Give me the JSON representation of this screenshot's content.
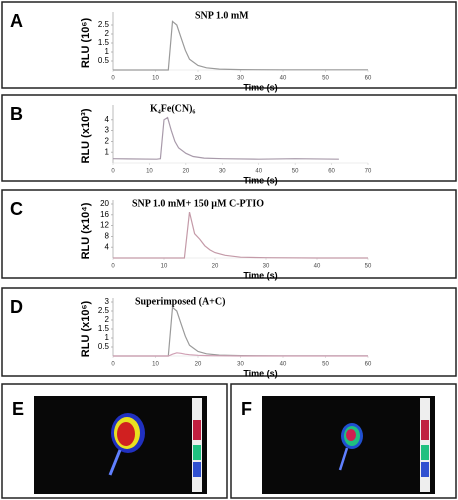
{
  "chart_data": [
    {
      "type": "line",
      "panel": "A",
      "title": "SNP 1.0 mM",
      "y_label": "RLU (10⁶)",
      "x_label": "Time (s)",
      "x": [
        0,
        12,
        13,
        14,
        15,
        16,
        17,
        18,
        20,
        22,
        25,
        30,
        40,
        50,
        60
      ],
      "series": [
        {
          "name": "SNP 1.0 mM",
          "color": "#9a9a9a",
          "values": [
            0,
            0,
            0,
            2.7,
            2.5,
            1.8,
            1.1,
            0.6,
            0.25,
            0.12,
            0.05,
            0.02,
            0.01,
            0.01,
            0.01
          ]
        }
      ],
      "xlim": [
        0,
        60
      ],
      "xticks": [
        0,
        10,
        20,
        30,
        40,
        50,
        60
      ],
      "ylim": [
        0,
        3
      ],
      "yticks": [
        0.5,
        1.0,
        1.5,
        2.0,
        2.5
      ]
    },
    {
      "type": "line",
      "panel": "B",
      "title": "K₄Fe(CN)₆",
      "y_label": "RLU (x10³)",
      "x_label": "Time (s)",
      "x": [
        0,
        12,
        13,
        14,
        15,
        16,
        17,
        18,
        20,
        22,
        25,
        30,
        40,
        50,
        62
      ],
      "series": [
        {
          "name": "K₄Fe(CN)₆",
          "color": "#a89aaa",
          "values": [
            0.4,
            0.35,
            0.4,
            4.0,
            4.2,
            3.0,
            2.0,
            1.4,
            0.9,
            0.6,
            0.45,
            0.4,
            0.35,
            0.4,
            0.35
          ]
        }
      ],
      "xlim": [
        0,
        70
      ],
      "xticks": [
        0,
        10,
        20,
        30,
        40,
        50,
        60,
        70
      ],
      "ylim": [
        0,
        5
      ],
      "yticks": [
        1,
        2,
        3,
        4
      ]
    },
    {
      "type": "line",
      "panel": "C",
      "title": "SNP 1.0 mM+ 150 µM C-PTIO",
      "y_label": "RLU (x10⁴)",
      "x_label": "Time (s)",
      "x": [
        0,
        13,
        14,
        15,
        16,
        17,
        18,
        19,
        20,
        22,
        25,
        30,
        40,
        50
      ],
      "series": [
        {
          "name": "SNP 1.0 mM+ 150 µM C-PTIO",
          "color": "#c49aa8",
          "values": [
            0,
            0,
            0,
            17,
            9,
            7,
            4.5,
            3,
            2,
            1,
            0.3,
            0.1,
            0,
            0
          ]
        }
      ],
      "xlim": [
        0,
        50
      ],
      "xticks": [
        0,
        10,
        20,
        30,
        40,
        50
      ],
      "ylim": [
        0,
        20
      ],
      "yticks": [
        4,
        8,
        12,
        16,
        20
      ]
    },
    {
      "type": "line",
      "panel": "D",
      "title": "Superimposed (A+C)",
      "y_label": "RLU (x10⁶)",
      "x_label": "Time (s)",
      "x": [
        0,
        12,
        13,
        14,
        15,
        16,
        17,
        18,
        20,
        22,
        25,
        30,
        40,
        50,
        60
      ],
      "series": [
        {
          "name": "A",
          "color": "#9a9a9a",
          "values": [
            0,
            0,
            0,
            2.7,
            2.5,
            1.8,
            1.1,
            0.6,
            0.25,
            0.12,
            0.05,
            0.02,
            0.01,
            0.01,
            0.01
          ]
        },
        {
          "name": "C",
          "color": "#d0a0b4",
          "values": [
            0,
            0,
            0,
            0.1,
            0.18,
            0.15,
            0.1,
            0.07,
            0.04,
            0.02,
            0.01,
            0,
            0,
            0,
            0
          ]
        }
      ],
      "xlim": [
        0,
        60
      ],
      "xticks": [
        0,
        10,
        20,
        30,
        40,
        50,
        60
      ],
      "ylim": [
        0,
        3
      ],
      "yticks": [
        0.5,
        1.0,
        1.5,
        2.0,
        2.5,
        3.0
      ]
    }
  ],
  "image_panels": [
    {
      "label": "E"
    },
    {
      "label": "F"
    }
  ]
}
